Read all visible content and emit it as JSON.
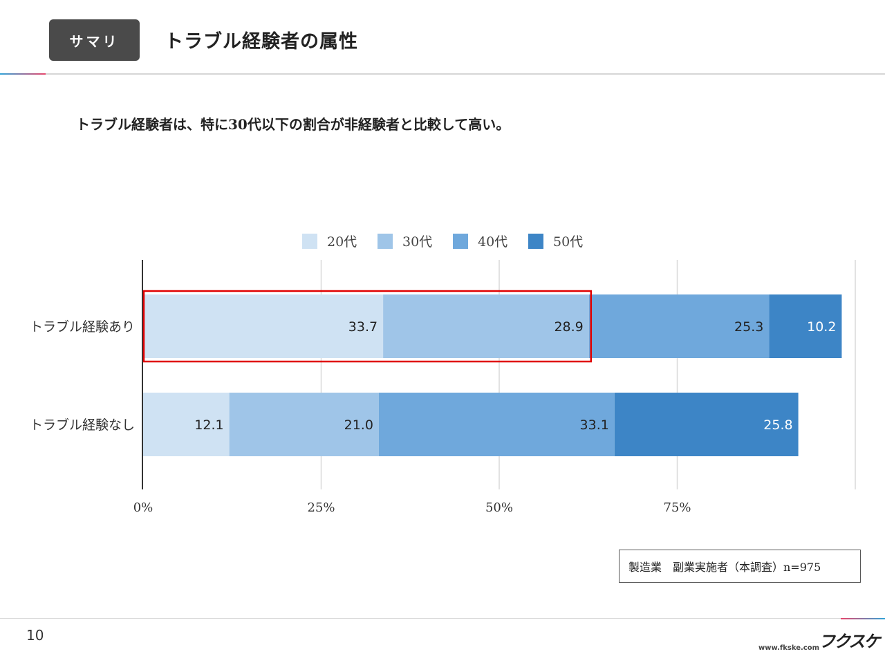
{
  "header": {
    "badge_label": "サマリ",
    "title": "トラブル経験者の属性"
  },
  "summary": "トラブル経験者は、特に30代以下の割合が非経験者と比較して高い。",
  "chart_data": {
    "type": "bar",
    "orientation": "horizontal",
    "stacked": true,
    "categories": [
      "トラブル経験あり",
      "トラブル経験なし"
    ],
    "series": [
      {
        "name": "20代",
        "values": [
          33.7,
          12.1
        ],
        "color": "#cfe2f3"
      },
      {
        "name": "30代",
        "values": [
          28.9,
          21.0
        ],
        "color": "#9fc5e8"
      },
      {
        "name": "40代",
        "values": [
          25.3,
          33.1
        ],
        "color": "#6fa8dc"
      },
      {
        "name": "50代",
        "values": [
          10.2,
          25.8
        ],
        "color": "#3d85c6"
      }
    ],
    "x_ticks": [
      "0%",
      "25%",
      "50%",
      "75%"
    ],
    "xlim": [
      0,
      100
    ],
    "grid": true,
    "legend": "top",
    "highlight": {
      "category": "トラブル経験あり",
      "series": [
        "20代",
        "30代"
      ],
      "color": "#e00000"
    }
  },
  "source_note": "製造業　副業実施者（本調査）n=975",
  "footer": {
    "page_number": "10",
    "logo_mark": "フクスケ",
    "logo_url": "www.fkske.com"
  }
}
